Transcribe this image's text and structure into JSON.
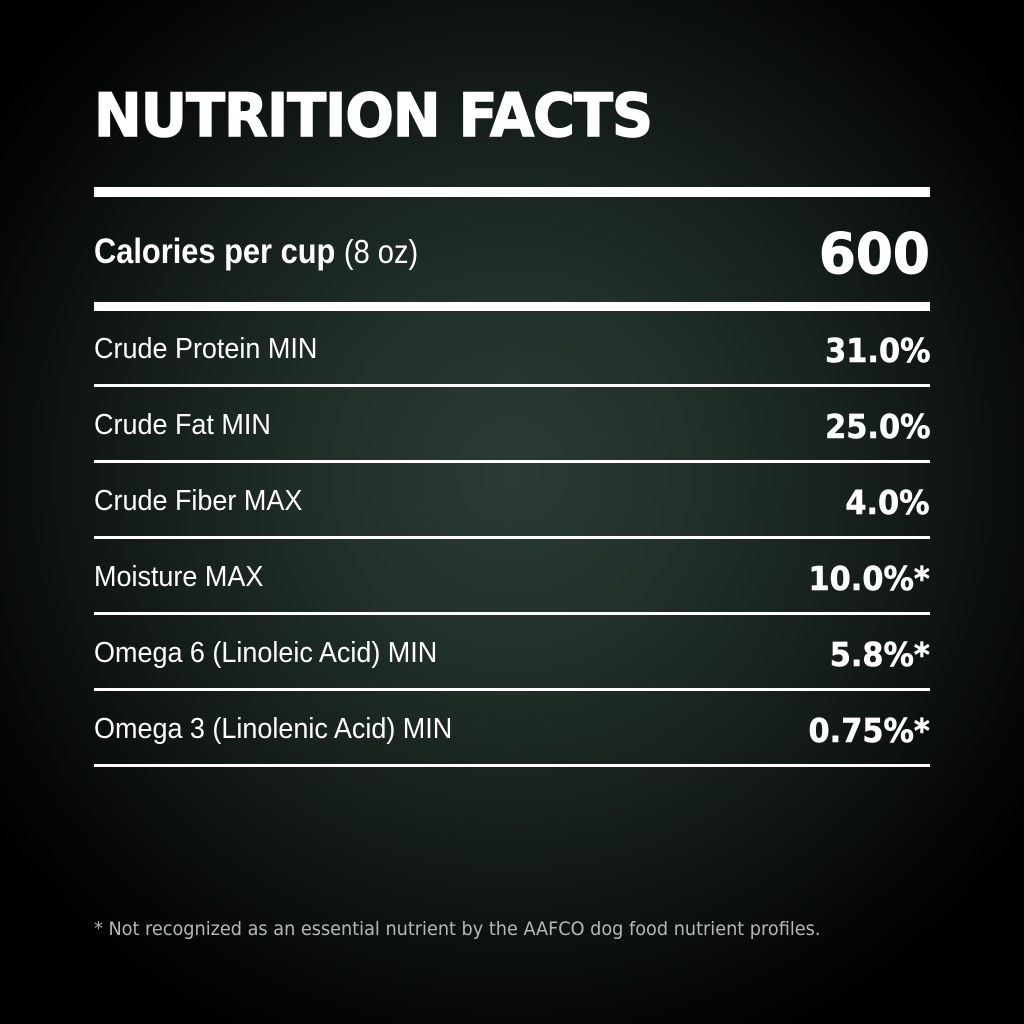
{
  "title": "NUTRITION FACTS",
  "calories": {
    "label": "Calories per cup",
    "unit": "(8 oz)",
    "value": "600"
  },
  "rows": [
    {
      "label": "Crude Protein MIN",
      "value": "31.0%"
    },
    {
      "label": "Crude Fat MIN",
      "value": "25.0%"
    },
    {
      "label": "Crude Fiber MAX",
      "value": "4.0%"
    },
    {
      "label": "Moisture MAX",
      "value": "10.0%*"
    },
    {
      "label": "Omega 6 (Linoleic Acid) MIN",
      "value": "5.8%*"
    },
    {
      "label": "Omega 3 (Linolenic Acid) MIN",
      "value": "0.75%*"
    }
  ],
  "footnote": "* Not recognized as an essential nutrient by the AAFCO dog food nutrient profiles.",
  "colors": {
    "text": "#ffffff",
    "footnote": "#b4b8b6",
    "background_center": "#2a3b35",
    "background_edge": "#000000"
  }
}
